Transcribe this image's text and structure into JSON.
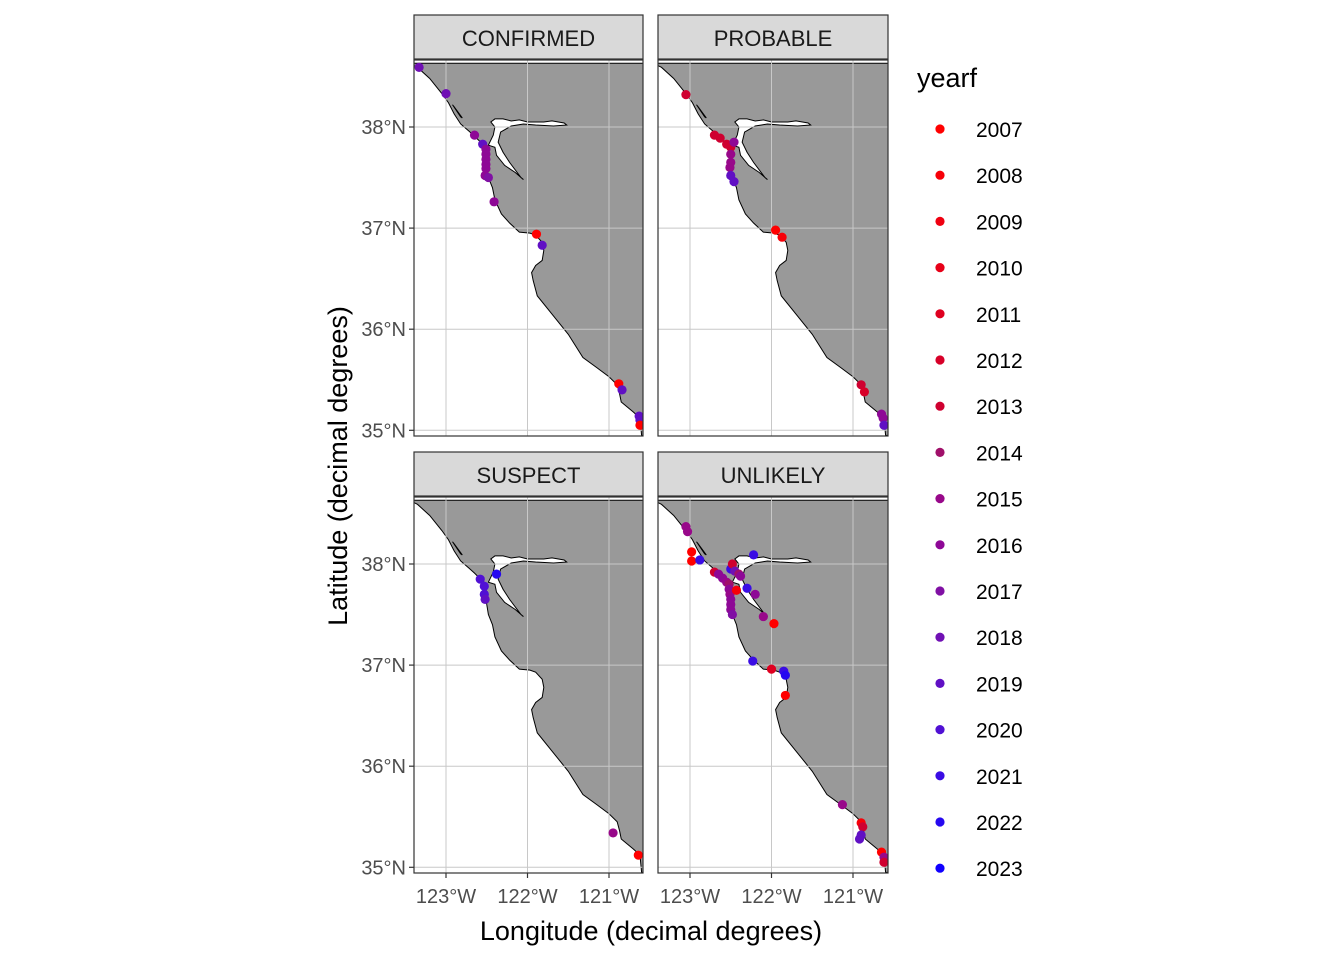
{
  "chart_data": {
    "type": "map",
    "xlabel": "Longitude (decimal degrees)",
    "ylabel": "Latitude (decimal degrees)",
    "xlim": [
      -123.45,
      -120.55
    ],
    "ylim": [
      34.95,
      38.62
    ],
    "x_ticks": [
      -123,
      -122,
      -121
    ],
    "x_tick_labels": [
      "123°W",
      "122°W",
      "121°W"
    ],
    "y_ticks": [
      35,
      36,
      37,
      38
    ],
    "y_tick_labels": [
      "35°N",
      "36°N",
      "37°N",
      "38°N"
    ],
    "grid": true,
    "legend": {
      "title": "yearf",
      "placement": "right",
      "entries": [
        {
          "label": "2007",
          "color": "#ff0000"
        },
        {
          "label": "2008",
          "color": "#f70008"
        },
        {
          "label": "2009",
          "color": "#ef0010"
        },
        {
          "label": "2010",
          "color": "#e70018"
        },
        {
          "label": "2011",
          "color": "#df0020"
        },
        {
          "label": "2012",
          "color": "#d70028"
        },
        {
          "label": "2013",
          "color": "#cf0030"
        },
        {
          "label": "2014",
          "color": "#a0106a"
        },
        {
          "label": "2015",
          "color": "#98088a"
        },
        {
          "label": "2016",
          "color": "#8e0896"
        },
        {
          "label": "2017",
          "color": "#8010a4"
        },
        {
          "label": "2018",
          "color": "#7010b4"
        },
        {
          "label": "2019",
          "color": "#6010c4"
        },
        {
          "label": "2020",
          "color": "#5010d4"
        },
        {
          "label": "2021",
          "color": "#3a0ce4"
        },
        {
          "label": "2022",
          "color": "#2608f0"
        },
        {
          "label": "2023",
          "color": "#1000ff"
        }
      ]
    },
    "facets": [
      {
        "label": "CONFIRMED",
        "points": [
          {
            "lon": -123.33,
            "lat": 38.59,
            "year": "2018"
          },
          {
            "lon": -123.0,
            "lat": 38.33,
            "year": "2018"
          },
          {
            "lon": -122.65,
            "lat": 37.92,
            "year": "2016"
          },
          {
            "lon": -122.55,
            "lat": 37.83,
            "year": "2019"
          },
          {
            "lon": -122.51,
            "lat": 37.78,
            "year": "2016"
          },
          {
            "lon": -122.51,
            "lat": 37.73,
            "year": "2016"
          },
          {
            "lon": -122.51,
            "lat": 37.68,
            "year": "2016"
          },
          {
            "lon": -122.51,
            "lat": 37.63,
            "year": "2016"
          },
          {
            "lon": -122.51,
            "lat": 37.59,
            "year": "2016"
          },
          {
            "lon": -122.52,
            "lat": 37.52,
            "year": "2016"
          },
          {
            "lon": -122.48,
            "lat": 37.5,
            "year": "2017"
          },
          {
            "lon": -122.41,
            "lat": 37.26,
            "year": "2016"
          },
          {
            "lon": -121.89,
            "lat": 36.94,
            "year": "2007"
          },
          {
            "lon": -121.82,
            "lat": 36.83,
            "year": "2019"
          },
          {
            "lon": -120.88,
            "lat": 35.46,
            "year": "2007"
          },
          {
            "lon": -120.84,
            "lat": 35.4,
            "year": "2019"
          },
          {
            "lon": -120.63,
            "lat": 35.14,
            "year": "2019"
          },
          {
            "lon": -120.62,
            "lat": 35.1,
            "year": "2019"
          },
          {
            "lon": -120.62,
            "lat": 35.05,
            "year": "2007"
          }
        ]
      },
      {
        "label": "PROBABLE",
        "points": [
          {
            "lon": -123.05,
            "lat": 38.32,
            "year": "2013"
          },
          {
            "lon": -122.7,
            "lat": 37.92,
            "year": "2013"
          },
          {
            "lon": -122.63,
            "lat": 37.89,
            "year": "2013"
          },
          {
            "lon": -122.55,
            "lat": 37.83,
            "year": "2013"
          },
          {
            "lon": -122.5,
            "lat": 37.8,
            "year": "2013"
          },
          {
            "lon": -122.46,
            "lat": 37.85,
            "year": "2016"
          },
          {
            "lon": -122.5,
            "lat": 37.73,
            "year": "2015"
          },
          {
            "lon": -122.5,
            "lat": 37.65,
            "year": "2015"
          },
          {
            "lon": -122.51,
            "lat": 37.6,
            "year": "2015"
          },
          {
            "lon": -122.5,
            "lat": 37.52,
            "year": "2019"
          },
          {
            "lon": -122.46,
            "lat": 37.46,
            "year": "2019"
          },
          {
            "lon": -121.95,
            "lat": 36.98,
            "year": "2007"
          },
          {
            "lon": -121.87,
            "lat": 36.91,
            "year": "2008"
          },
          {
            "lon": -120.9,
            "lat": 35.45,
            "year": "2013"
          },
          {
            "lon": -120.86,
            "lat": 35.38,
            "year": "2012"
          },
          {
            "lon": -120.65,
            "lat": 35.16,
            "year": "2016"
          },
          {
            "lon": -120.63,
            "lat": 35.12,
            "year": "2016"
          },
          {
            "lon": -120.62,
            "lat": 35.05,
            "year": "2019"
          }
        ]
      },
      {
        "label": "SUSPECT",
        "points": [
          {
            "lon": -122.58,
            "lat": 37.85,
            "year": "2020"
          },
          {
            "lon": -122.38,
            "lat": 37.9,
            "year": "2022"
          },
          {
            "lon": -122.53,
            "lat": 37.78,
            "year": "2020"
          },
          {
            "lon": -122.53,
            "lat": 37.7,
            "year": "2020"
          },
          {
            "lon": -122.52,
            "lat": 37.65,
            "year": "2019"
          },
          {
            "lon": -120.95,
            "lat": 35.34,
            "year": "2015"
          },
          {
            "lon": -120.64,
            "lat": 35.12,
            "year": "2007"
          }
        ]
      },
      {
        "label": "UNLIKELY",
        "points": [
          {
            "lon": -123.05,
            "lat": 38.37,
            "year": "2015"
          },
          {
            "lon": -123.03,
            "lat": 38.32,
            "year": "2015"
          },
          {
            "lon": -122.98,
            "lat": 38.12,
            "year": "2007"
          },
          {
            "lon": -122.98,
            "lat": 38.03,
            "year": "2007"
          },
          {
            "lon": -122.88,
            "lat": 38.04,
            "year": "2021"
          },
          {
            "lon": -122.22,
            "lat": 38.09,
            "year": "2021"
          },
          {
            "lon": -122.7,
            "lat": 37.92,
            "year": "2013"
          },
          {
            "lon": -122.65,
            "lat": 37.9,
            "year": "2016"
          },
          {
            "lon": -122.6,
            "lat": 37.86,
            "year": "2016"
          },
          {
            "lon": -122.55,
            "lat": 37.82,
            "year": "2015"
          },
          {
            "lon": -122.5,
            "lat": 37.95,
            "year": "2021"
          },
          {
            "lon": -122.48,
            "lat": 38.0,
            "year": "2013"
          },
          {
            "lon": -122.45,
            "lat": 37.93,
            "year": "2018"
          },
          {
            "lon": -122.4,
            "lat": 37.9,
            "year": "2014"
          },
          {
            "lon": -122.38,
            "lat": 37.88,
            "year": "2016"
          },
          {
            "lon": -122.52,
            "lat": 37.8,
            "year": "2014"
          },
          {
            "lon": -122.52,
            "lat": 37.75,
            "year": "2016"
          },
          {
            "lon": -122.51,
            "lat": 37.7,
            "year": "2015"
          },
          {
            "lon": -122.5,
            "lat": 37.65,
            "year": "2016"
          },
          {
            "lon": -122.5,
            "lat": 37.6,
            "year": "2016"
          },
          {
            "lon": -122.5,
            "lat": 37.55,
            "year": "2016"
          },
          {
            "lon": -122.48,
            "lat": 37.5,
            "year": "2017"
          },
          {
            "lon": -122.43,
            "lat": 37.74,
            "year": "2008"
          },
          {
            "lon": -122.3,
            "lat": 37.76,
            "year": "2021"
          },
          {
            "lon": -122.2,
            "lat": 37.7,
            "year": "2016"
          },
          {
            "lon": -122.1,
            "lat": 37.48,
            "year": "2015"
          },
          {
            "lon": -121.97,
            "lat": 37.41,
            "year": "2007"
          },
          {
            "lon": -122.23,
            "lat": 37.04,
            "year": "2021"
          },
          {
            "lon": -122.0,
            "lat": 36.96,
            "year": "2011"
          },
          {
            "lon": -121.85,
            "lat": 36.94,
            "year": "2021"
          },
          {
            "lon": -121.83,
            "lat": 36.9,
            "year": "2022"
          },
          {
            "lon": -121.83,
            "lat": 36.7,
            "year": "2007"
          },
          {
            "lon": -121.13,
            "lat": 35.62,
            "year": "2015"
          },
          {
            "lon": -120.9,
            "lat": 35.44,
            "year": "2008"
          },
          {
            "lon": -120.88,
            "lat": 35.4,
            "year": "2013"
          },
          {
            "lon": -120.9,
            "lat": 35.32,
            "year": "2019"
          },
          {
            "lon": -120.92,
            "lat": 35.28,
            "year": "2019"
          },
          {
            "lon": -120.65,
            "lat": 35.15,
            "year": "2007"
          },
          {
            "lon": -120.62,
            "lat": 35.1,
            "year": "2015"
          },
          {
            "lon": -120.62,
            "lat": 35.05,
            "year": "2013"
          }
        ]
      }
    ]
  }
}
